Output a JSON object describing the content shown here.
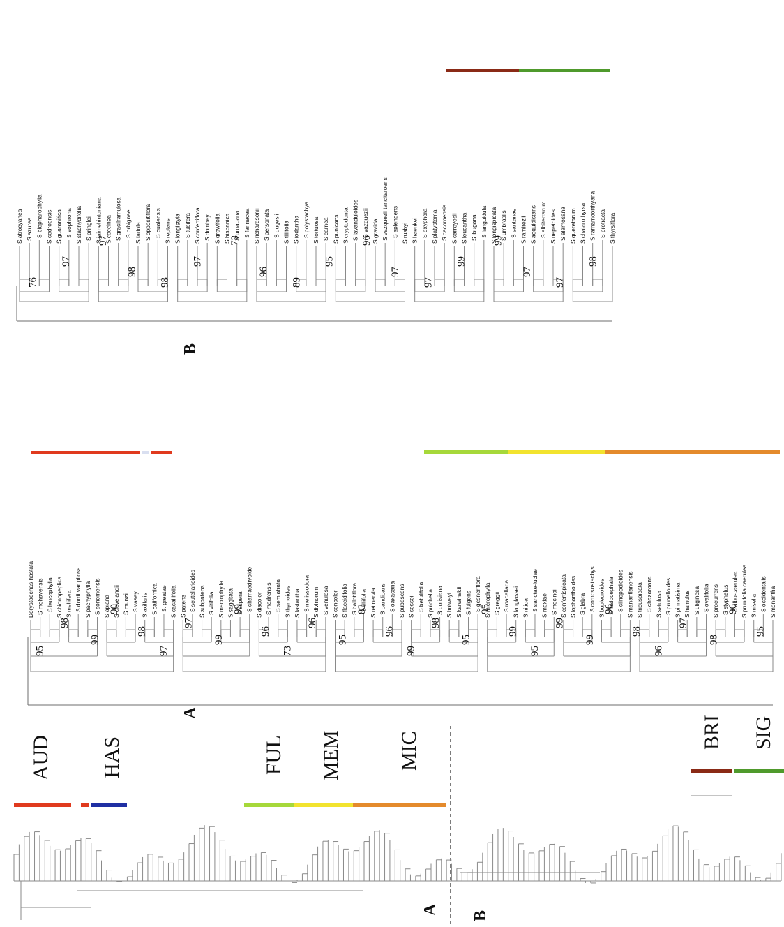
{
  "panels": {
    "overview_a": "A",
    "overview_b": "B",
    "detail_a": "A",
    "detail_b": "B"
  },
  "groups": [
    {
      "label": "AUD",
      "color": "#e03a1e"
    },
    {
      "label": "HAS",
      "color": "#1f2fa3"
    },
    {
      "label": "FUL",
      "color": "#a6d83a"
    },
    {
      "label": "MEM",
      "color": "#f2e32e"
    },
    {
      "label": "MIC",
      "color": "#e48a2c"
    },
    {
      "label": "BRI",
      "color": "#8a2a16"
    },
    {
      "label": "SIG",
      "color": "#4f9a2c"
    }
  ],
  "tree_a_taxa": [
    "Dorystaechas hastata",
    "S mohavensis",
    "S leucophylla",
    "S chionopeplica",
    "S mellifera",
    "S dorrii var pilosa",
    "S pachyphylla",
    "S sonomensis",
    "S apiana",
    "S clevelandii",
    "S munzii",
    "S vaseyi",
    "S axillaris",
    "S californica",
    "S. greatae",
    "S cacaliifolia",
    "S patens",
    "S scutellarioides",
    "S subpatens",
    "S vitifolia",
    "S macrophylla",
    "S saggitata",
    "S aspera",
    "S chamaedryoide",
    "S discolor",
    "S madrensis",
    "S semiatrata",
    "S thymoides",
    "S lasiantha",
    "S melissodora",
    "S divinorum",
    "S venulosa",
    "S concolor",
    "S flaccidifolia",
    "S ballotiflora",
    "S tiliifolia",
    "S retinervia",
    "S candicans",
    "S oaxacana",
    "S pubescens",
    "S sessei",
    "S betulifolia",
    "S pulchella",
    "S dorisiana",
    "S holwayi",
    "S karwinskii",
    "S fulgens",
    "S gesneriflora",
    "S microphylla",
    "S greggii",
    "S macellaria",
    "S langlassei",
    "S nitida",
    "S sanctae-luciae",
    "S mexiae",
    "S mocinoi",
    "S confertispicata",
    "S lophanthoides",
    "S glabra",
    "S compsostachys",
    "S bupleuroides",
    "S lasiocephala",
    "S clinopodioides",
    "S manantlanensis",
    "S tricuspidata",
    "S chazaroana",
    "S setulosa",
    "S prunelloides",
    "S pinnatisima",
    "S hamulus",
    "S uliginosa",
    "S ovalifolia",
    "S procurrens",
    "S styphelus",
    "S albo-caerulea",
    "S prunifolia caerulea",
    "S misella",
    "S occidentalis",
    "S monantha"
  ],
  "tree_a_support": [
    "95",
    "98",
    "99",
    "90",
    "98",
    "97",
    "97",
    "99",
    "99",
    "96",
    "73",
    "96",
    "95",
    "83",
    "96",
    "99",
    "98",
    "95",
    "95",
    "99",
    "95",
    "99",
    "99",
    "96",
    "98",
    "96",
    "97",
    "98",
    "96",
    "95"
  ],
  "tree_b_taxa": [
    "S atrocyanea",
    "S azurea",
    "S blepharophylla",
    "S cedroensis",
    "S guaranitica",
    "S sophrona",
    "S stachydifolia",
    "S pringlei",
    "S jaimehintoniana",
    "S coccinea",
    "S gracilramulosa",
    "S orbignaei",
    "S fariola",
    "S oppositiflora",
    "S cualensis",
    "S reptans",
    "S longistyla",
    "S tubifera",
    "S confertiflora",
    "S dombeyi",
    "S grewifolia",
    "S hispanica",
    "S uruapana",
    "S farinacea",
    "S richardsonii",
    "S personata",
    "S dugesii",
    "S tiliifolia",
    "S iodantha",
    "S polystachya",
    "S tortuosa",
    "S carnea",
    "S punicans",
    "S cryptodonta",
    "S lavanduloides",
    "S vazquezii",
    "S gravida",
    "S vazquezii tancitaroensi",
    "S splendens",
    "S rusbyi",
    "S haenkei",
    "S oxyphora",
    "S platystoma",
    "S cacomensis",
    "S carreyesii",
    "S leucantha",
    "S ibugana",
    "S languidula",
    "S longispicata",
    "S umbratilis",
    "S santanae",
    "S ramirezii",
    "S aequidistans",
    "S albiterrarum",
    "S nepetoides",
    "S alamosana",
    "S queretarum",
    "S chalarothyrsa",
    "S ramamoorthyana",
    "S protracta",
    "S thyrsiflora"
  ],
  "tree_b_support": [
    "76",
    "97",
    "97",
    "98",
    "98",
    "97",
    "73",
    "96",
    "89",
    "95",
    "96",
    "97",
    "97",
    "99",
    "99",
    "97",
    "97",
    "98"
  ],
  "footer_mark": "-"
}
